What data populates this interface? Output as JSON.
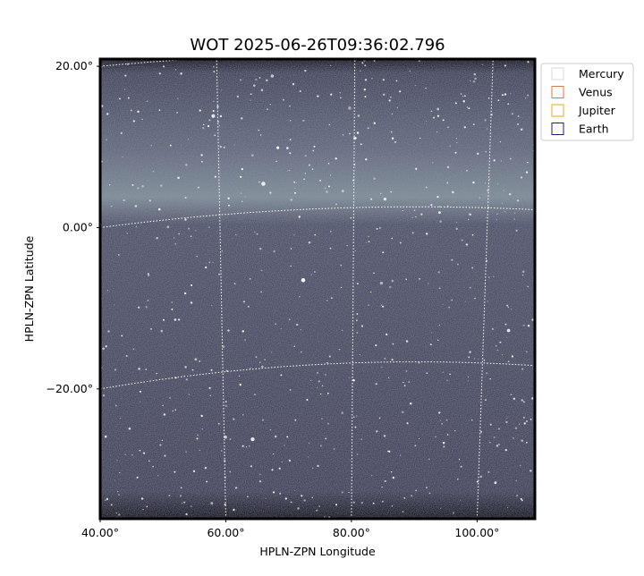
{
  "chart_data": {
    "type": "image",
    "title": "WOT 2025-06-26T09:36:02.796",
    "xlabel": "HPLN-ZPN Longitude",
    "ylabel": "HPLN-ZPN Latitude",
    "xlim": [
      40,
      109.2
    ],
    "ylim": [
      -36.1,
      20.9
    ],
    "xticks": [
      {
        "value": 40,
        "label": "40.00°"
      },
      {
        "value": 60,
        "label": "60.00°"
      },
      {
        "value": 80,
        "label": "80.00°"
      },
      {
        "value": 100,
        "label": "100.00°"
      }
    ],
    "yticks": [
      {
        "value": 20,
        "label": "20.00°"
      },
      {
        "value": 0,
        "label": "0.00°"
      },
      {
        "value": -20,
        "label": "−20.00°"
      }
    ],
    "grid": true,
    "grid_color": "#ffffff",
    "legend_loc": "right",
    "legend": [
      {
        "name": "Mercury",
        "color": "#d9d9d9"
      },
      {
        "name": "Venus",
        "color": "#e07a3a"
      },
      {
        "name": "Jupiter",
        "color": "#e0ad1a"
      },
      {
        "name": "Earth",
        "color": "#1a1a80"
      }
    ]
  }
}
